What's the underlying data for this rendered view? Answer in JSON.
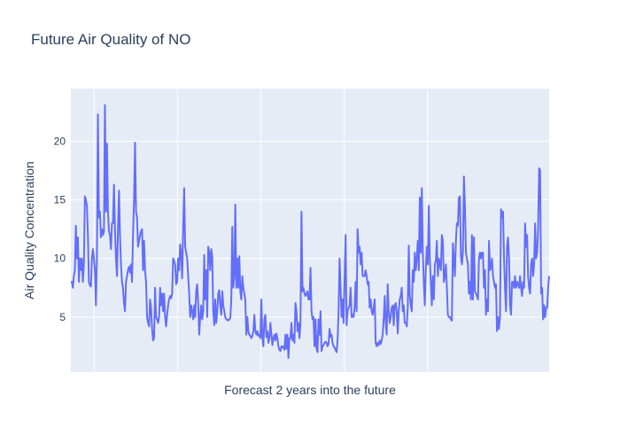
{
  "chart_data": {
    "type": "line",
    "title": "Future Air Quality of NO",
    "xlabel": "Forecast 2 years into the future",
    "ylabel": "Air Quality Concentration",
    "ylim": [
      0.3,
      24.5
    ],
    "xlim": [
      0,
      700
    ],
    "yticks": [
      5,
      10,
      15,
      20
    ],
    "xgrid": [
      34,
      156,
      278,
      400,
      522
    ],
    "grid": true,
    "colors": {
      "plot_bg": "#e5ecf6",
      "grid": "#ffffff",
      "line": "#636efa",
      "text": "#2a3f5f"
    },
    "series": [
      {
        "values": [
          8,
          8,
          7.5,
          8.5,
          9,
          12.8,
          10,
          11.8,
          8,
          10,
          9,
          10,
          8,
          9.5,
          15.3,
          15,
          14.5,
          12,
          8,
          7.7,
          7.6,
          10,
          10.8,
          10,
          9,
          6,
          10,
          22.3,
          13.5,
          14,
          11.8,
          12.5,
          12,
          12.3,
          23.1,
          14,
          19.8,
          14,
          12.3,
          12,
          10.8,
          13,
          13,
          16.3,
          12.5,
          10,
          8.5,
          12.5,
          15.8,
          12,
          9.5,
          8,
          7.5,
          6.2,
          5.5,
          8,
          8.5,
          9,
          9.3,
          8.8,
          9.5,
          8,
          12,
          15,
          19.9,
          14,
          13.5,
          11,
          11.5,
          12,
          12.3,
          12.5,
          9,
          11.5,
          9,
          8,
          5,
          4.5,
          4.2,
          6.5,
          5.8,
          4,
          3,
          3.2,
          7.5,
          5,
          4.8,
          4.5,
          5,
          7.5,
          6,
          7,
          5.5,
          7,
          5,
          4.2,
          5.2,
          6,
          6.5,
          6.8,
          6.6,
          7,
          10,
          9.8,
          9.5,
          7.8,
          8,
          10,
          9,
          11.2,
          10.5,
          8.3,
          12.5,
          16,
          11,
          10.5,
          10,
          8.5,
          7,
          5,
          6,
          5.5,
          4.8,
          6,
          5,
          7.2,
          7.8,
          6.2,
          3.5,
          5,
          6,
          4.8,
          5.5,
          10.3,
          6.5,
          9,
          5,
          11,
          10.5,
          9,
          10.8,
          10.2,
          5.5,
          4.3,
          6.5,
          4.5,
          5.5,
          7,
          7.3,
          6,
          5.2,
          7.2,
          6,
          5.5,
          5,
          4.8,
          4.8,
          4.7,
          4.8,
          4.9,
          6.5,
          12.7,
          7.5,
          8.5,
          14.6,
          7.5,
          10,
          7.5,
          10.2,
          7.2,
          6.5,
          8.5,
          7.5,
          7,
          6.5,
          3.5,
          5,
          3.8,
          3.5,
          3.4,
          3.2,
          3.4,
          3.8,
          5.2,
          3.8,
          3.5,
          3.8,
          3.4,
          3.5,
          3.2,
          6.5,
          3.2,
          2.5,
          4.8,
          5.2,
          3.3,
          3.8,
          2.8,
          3.2,
          4.5,
          3.5,
          2.6,
          3.2,
          3.5,
          3,
          3.6,
          3.2,
          2.5,
          2.2,
          2.1,
          2.5,
          2.4,
          2.5,
          2.2,
          3.5,
          2.3,
          3.5,
          1.5,
          3.2,
          3.2,
          4.5,
          3,
          3.5,
          2.8,
          6.2,
          5.5,
          3.8,
          4.5,
          3.2,
          4.5,
          14,
          7.2,
          7.5,
          7,
          6.8,
          7,
          7.2,
          6.5,
          6.5,
          9.2,
          5.5,
          4.8,
          5,
          2.5,
          4.8,
          2.3,
          2,
          4.8,
          3.5,
          5.5,
          2.1,
          2.5,
          2.6,
          2.8,
          2.9,
          2.8,
          2.5,
          2.7,
          4,
          3.3,
          3.5,
          2.8,
          2.5,
          2.4,
          2.2,
          2,
          3,
          5.5,
          10,
          7.5,
          5,
          6.5,
          4.5,
          8.5,
          12,
          4.3,
          5.5,
          5.8,
          6,
          7.5,
          5,
          5.2,
          5,
          5.8,
          8,
          5.5,
          12.5,
          10.5,
          11,
          9.5,
          10.5,
          8.5,
          8.5,
          8.5,
          9,
          8.5,
          7.8,
          8,
          5.8,
          6.5,
          5.5,
          5.2,
          5.8,
          6.5,
          2.8,
          2.5,
          2.8,
          2.6,
          3,
          2.7,
          3,
          3.5,
          4.8,
          6.8,
          4.5,
          3.5,
          7.8,
          5.5,
          4.5,
          5,
          5.8,
          6,
          4.3,
          6,
          6.2,
          5.5,
          3.6,
          5.5,
          6.5,
          6.8,
          7.5,
          5.5,
          6,
          4.5,
          4.5,
          4.2,
          5.8,
          11.1,
          6.8,
          6,
          5.5,
          9,
          8,
          10.5,
          9,
          10,
          11.5,
          9,
          15.2,
          10.5,
          16,
          10.5,
          8,
          6,
          9,
          11,
          9.5,
          14.5,
          10,
          8,
          6,
          8.5,
          6.5,
          9.5,
          9.8,
          11.5,
          8.5,
          10,
          9.5,
          9,
          12,
          11.5,
          8,
          8.5,
          9.5,
          7.5,
          5.2,
          5,
          5,
          4.8,
          4.7,
          11.3,
          10,
          8.5,
          11.5,
          13,
          12.8,
          15.2,
          15.3,
          10.2,
          9.5,
          10.5,
          17,
          14.5,
          10.5,
          10,
          9.5,
          7,
          8,
          6.5,
          12,
          6.5,
          11.8,
          7.2,
          7,
          6.8,
          6.5,
          10,
          10.5,
          10,
          10.5,
          10.5,
          7.5,
          9,
          5.2,
          6.5,
          5.5,
          11.5,
          9,
          9.3,
          10,
          8.5,
          8,
          7.5,
          7.8,
          3.8,
          5,
          4,
          5,
          14.2,
          13.5,
          14,
          10,
          7.5,
          5.5,
          11,
          11.8,
          10,
          6,
          5.2,
          8,
          8,
          7.5,
          8.5,
          7.5,
          8,
          7.8,
          7.5,
          8.5,
          7.5,
          6.8,
          8,
          7.5,
          13,
          11,
          12,
          8.5,
          7.5,
          7,
          9.5,
          10,
          8.5,
          9.5,
          13,
          10,
          10.5,
          12.5,
          17.7,
          17.5,
          7,
          7.5,
          4.8,
          6,
          5,
          5.8,
          5.8,
          7.5,
          8.5
        ]
      }
    ]
  }
}
